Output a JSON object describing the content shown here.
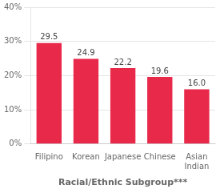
{
  "chart_data": {
    "type": "bar",
    "xlabel": "Racial/Ethnic Subgroup***",
    "categories": [
      "Filipino",
      "Korean",
      "Japanese",
      "Chinese",
      "Asian\nIndian"
    ],
    "values": [
      29.5,
      24.9,
      22.2,
      19.6,
      16.0
    ],
    "value_labels": [
      "29.5",
      "24.9",
      "22.2",
      "19.6",
      "16.0"
    ],
    "color": "#E8294A",
    "ylim": [
      0,
      40
    ],
    "yticks": [
      {
        "value": 0,
        "label": "0%"
      },
      {
        "value": 10,
        "label": "10%"
      },
      {
        "value": 20,
        "label": "20%"
      },
      {
        "value": 30,
        "label": "30%"
      },
      {
        "value": 40,
        "label": "40%"
      }
    ],
    "grid": true,
    "data_labels": true
  }
}
